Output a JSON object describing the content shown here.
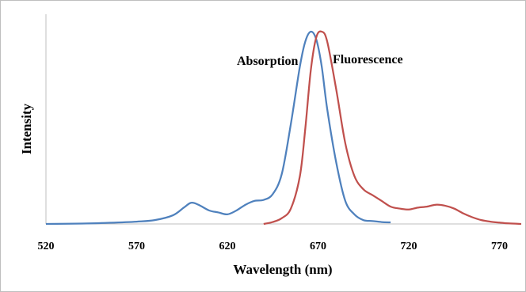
{
  "chart_data": {
    "type": "line",
    "xlabel": "Wavelength (nm)",
    "ylabel": "Intensity",
    "xlim": [
      520,
      782
    ],
    "ylim": [
      0,
      1.0
    ],
    "x_ticks": [
      "520",
      "570",
      "620",
      "670",
      "720",
      "770"
    ],
    "grid": false,
    "legend": "none",
    "annotations": [
      {
        "text": "Absorption",
        "series": "Absorption"
      },
      {
        "text": "Fluorescence",
        "series": "Fluorescence"
      }
    ],
    "series": [
      {
        "name": "Absorption",
        "color": "#4f81bd",
        "x": [
          520,
          540,
          555,
          570,
          580,
          590,
          596,
          600,
          604,
          610,
          615,
          620,
          625,
          630,
          635,
          640,
          645,
          650,
          655,
          660,
          663,
          666,
          669,
          672,
          675,
          680,
          685,
          690,
          695,
          700,
          705,
          710
        ],
        "y": [
          0.0,
          0.002,
          0.006,
          0.012,
          0.02,
          0.045,
          0.085,
          0.11,
          0.1,
          0.07,
          0.06,
          0.05,
          0.07,
          0.1,
          0.12,
          0.125,
          0.155,
          0.26,
          0.52,
          0.82,
          0.95,
          1.0,
          0.96,
          0.82,
          0.6,
          0.32,
          0.12,
          0.05,
          0.02,
          0.015,
          0.01,
          0.008
        ]
      },
      {
        "name": "Fluorescence",
        "color": "#c0504d",
        "x": [
          640,
          645,
          650,
          655,
          660,
          663,
          666,
          669,
          672,
          675,
          680,
          685,
          690,
          695,
          700,
          705,
          710,
          715,
          720,
          725,
          730,
          735,
          740,
          745,
          750,
          755,
          760,
          765,
          770,
          775,
          782
        ],
        "y": [
          0.0,
          0.01,
          0.03,
          0.08,
          0.25,
          0.5,
          0.8,
          0.97,
          1.0,
          0.95,
          0.7,
          0.42,
          0.25,
          0.18,
          0.15,
          0.12,
          0.09,
          0.08,
          0.075,
          0.085,
          0.09,
          0.1,
          0.095,
          0.08,
          0.055,
          0.035,
          0.02,
          0.012,
          0.007,
          0.003,
          0.0
        ]
      }
    ]
  }
}
